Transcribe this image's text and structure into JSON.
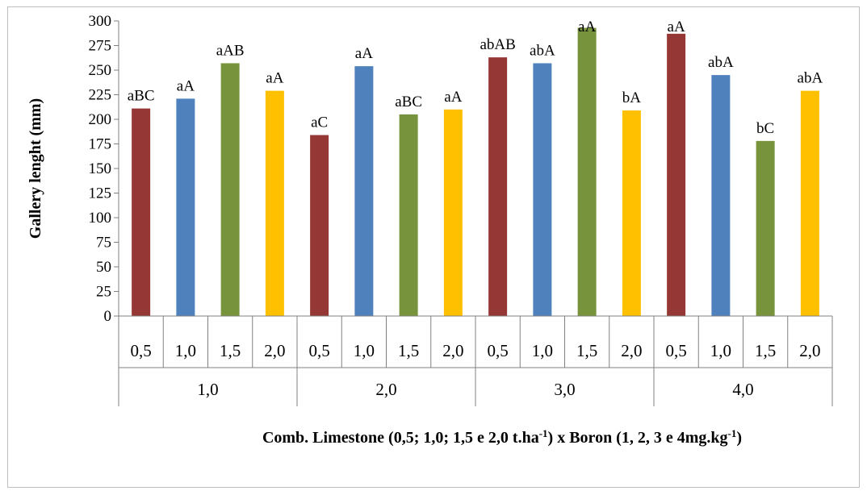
{
  "chart_data": {
    "type": "bar",
    "ylabel": "Gallery lenght (mm)",
    "xlabel": {
      "part1": "Comb. Limestone (0,5; 1,0; 1,5 e 2,0 t.ha",
      "sup1": "-1",
      "part2": ") x Boron (1, 2, 3 e 4mg.kg",
      "sup2": "-1",
      "part3": ")"
    },
    "ylim": [
      0,
      300
    ],
    "ytick_step": 25,
    "grid": false,
    "groups": [
      "1,0",
      "2,0",
      "3,0",
      "4,0"
    ],
    "subcategories": [
      "0,5",
      "1,0",
      "1,5",
      "2,0"
    ],
    "colors": [
      "#953735",
      "#4f81bd",
      "#77933c",
      "#ffc000"
    ],
    "values": [
      211,
      221,
      257,
      229,
      184,
      254,
      205,
      210,
      263,
      257,
      293,
      209,
      287,
      245,
      178,
      229
    ],
    "labels": [
      "aBC",
      "aA",
      "aAB",
      "aA",
      "aC",
      "aA",
      "aBC",
      "aA",
      "abAB",
      "abA",
      "aA",
      "bA",
      "aA",
      "abA",
      "bC",
      "abA"
    ]
  }
}
